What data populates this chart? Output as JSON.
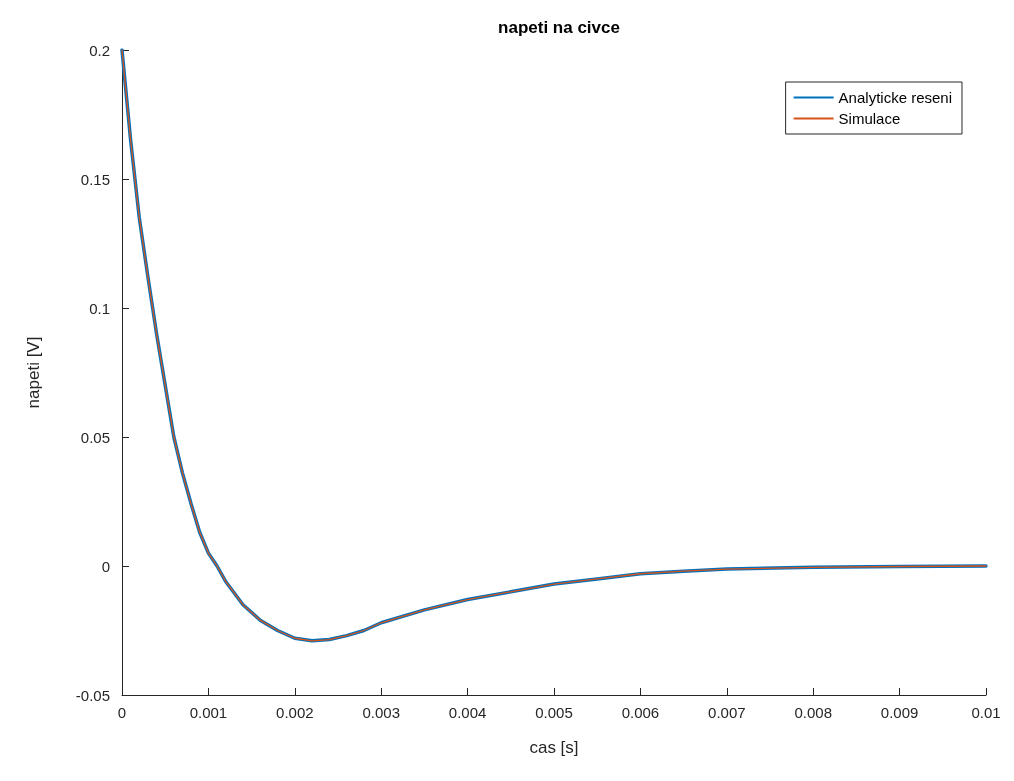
{
  "chart_data": {
    "type": "line",
    "title": "napeti na civce",
    "xlabel": "cas [s]",
    "ylabel": "napeti [V]",
    "x": [
      0,
      0.0001,
      0.0002,
      0.0003,
      0.0004,
      0.0005,
      0.0006,
      0.0007,
      0.0008,
      0.0009,
      0.001,
      0.0011,
      0.0012,
      0.0014,
      0.0016,
      0.0018,
      0.002,
      0.0022,
      0.0024,
      0.0026,
      0.0028,
      0.003,
      0.0035,
      0.004,
      0.0045,
      0.005,
      0.0055,
      0.006,
      0.0065,
      0.007,
      0.008,
      0.009,
      0.01
    ],
    "series": [
      {
        "name": "Analyticke reseni",
        "color": "#0072bd",
        "values": [
          0.2,
          0.165,
          0.135,
          0.112,
          0.09,
          0.07,
          0.05,
          0.036,
          0.024,
          0.013,
          0.005,
          0,
          -0.006,
          -0.015,
          -0.021,
          -0.025,
          -0.028,
          -0.029,
          -0.0285,
          -0.027,
          -0.025,
          -0.022,
          -0.017,
          -0.013,
          -0.01,
          -0.007,
          -0.005,
          -0.003,
          -0.002,
          -0.0012,
          -0.0005,
          -0.0002,
          0
        ]
      },
      {
        "name": "Simulace",
        "color": "#d95319",
        "values": [
          0.2,
          0.165,
          0.135,
          0.112,
          0.09,
          0.07,
          0.05,
          0.036,
          0.024,
          0.013,
          0.005,
          0,
          -0.006,
          -0.015,
          -0.021,
          -0.025,
          -0.028,
          -0.029,
          -0.0285,
          -0.027,
          -0.025,
          -0.022,
          -0.017,
          -0.013,
          -0.01,
          -0.007,
          -0.005,
          -0.003,
          -0.002,
          -0.0012,
          -0.0005,
          -0.0002,
          0
        ]
      }
    ],
    "xlim": [
      0,
      0.01
    ],
    "xticks": [
      0,
      0.001,
      0.002,
      0.003,
      0.004,
      0.005,
      0.006,
      0.007,
      0.008,
      0.009,
      0.01
    ],
    "ylim": [
      -0.05,
      0.2
    ],
    "yticks": [
      -0.05,
      0,
      0.05,
      0.1,
      0.15,
      0.2
    ],
    "grid": false,
    "legend": "top right",
    "marker": "none",
    "line_style": "solid"
  }
}
